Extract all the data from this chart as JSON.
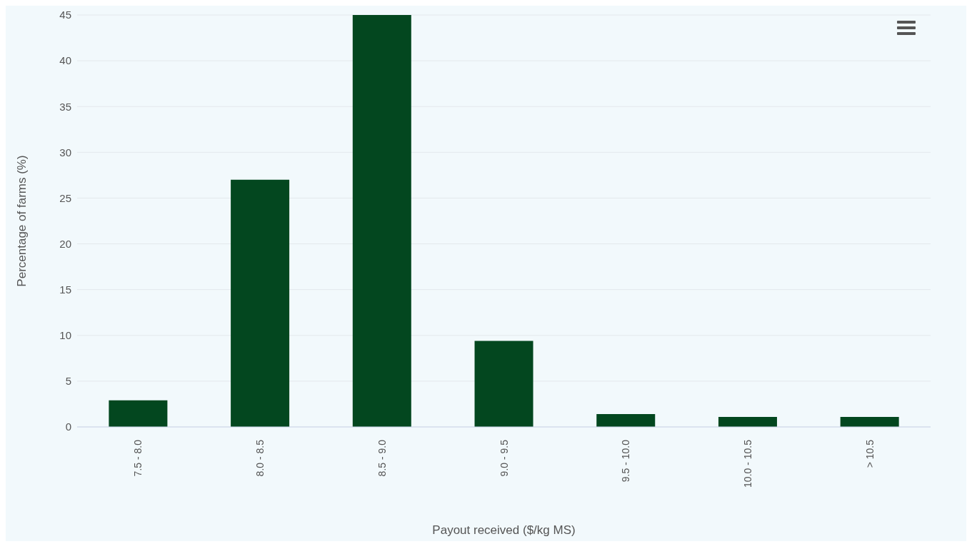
{
  "chart_data": {
    "type": "bar",
    "xlabel": "Payout received ($/kg MS)",
    "ylabel": "Percentage of farms (%)",
    "categories": [
      "7.5 - 8.0",
      "8.0 - 8.5",
      "8.5 - 9.0",
      "9.0 - 9.5",
      "9.5 - 10.0",
      "10.0 - 10.5",
      "> 10.5"
    ],
    "values": [
      2.9,
      27.0,
      45,
      9.4,
      1.4,
      1.1,
      1.1
    ],
    "color": "#03471f",
    "ylim": [
      0,
      45
    ],
    "yticks": [
      0,
      5,
      10,
      15,
      20,
      25,
      30,
      35,
      40,
      45
    ],
    "grid": "y"
  }
}
